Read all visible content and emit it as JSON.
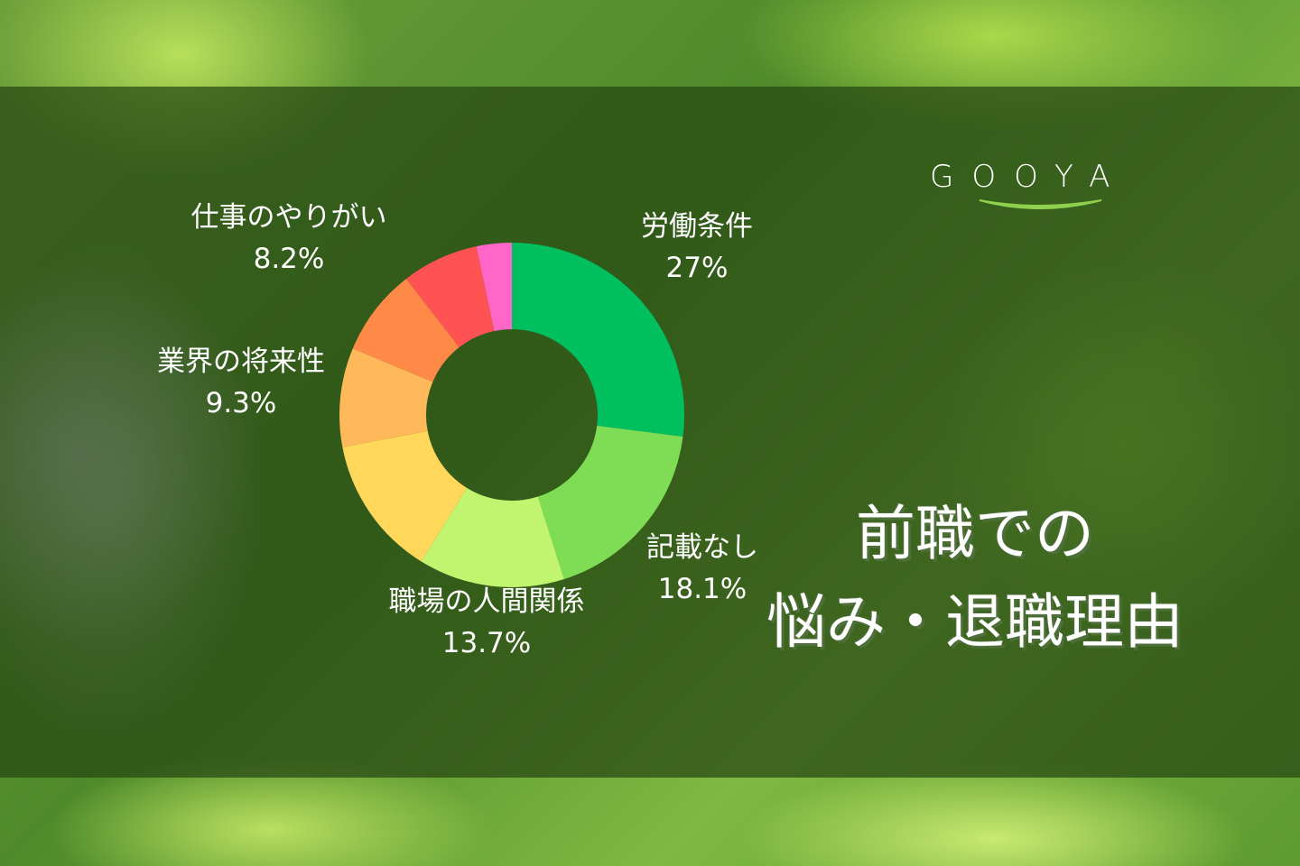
{
  "chart_data": {
    "type": "pie",
    "donut": true,
    "title": "前職での\n悩み・退職理由",
    "slices": [
      {
        "label": "労働条件",
        "value": 27,
        "value_label": "27%",
        "color": "#00bf5f"
      },
      {
        "label": "記載なし",
        "value": 18.1,
        "value_label": "18.1%",
        "color": "#7fdc55"
      },
      {
        "label": "職場の人間関係",
        "value": 13.7,
        "value_label": "13.7%",
        "color": "#c2f56f"
      },
      {
        "label": "",
        "value": 13.2,
        "value_label": "",
        "color": "#ffd75a"
      },
      {
        "label": "業界の将来性",
        "value": 9.3,
        "value_label": "9.3%",
        "color": "#ffb95a"
      },
      {
        "label": "仕事のやりがい",
        "value": 8.2,
        "value_label": "8.2%",
        "color": "#ff8a48"
      },
      {
        "label": "",
        "value": 7.2,
        "value_label": "",
        "color": "#ff5353"
      },
      {
        "label": "",
        "value": 3.3,
        "value_label": "",
        "color": "#ff66c8"
      }
    ]
  },
  "title": {
    "line1": "前職での",
    "line2": "悩み・退職理由"
  },
  "logo": {
    "text": "GOOYA",
    "accent": "#8fd14f"
  }
}
